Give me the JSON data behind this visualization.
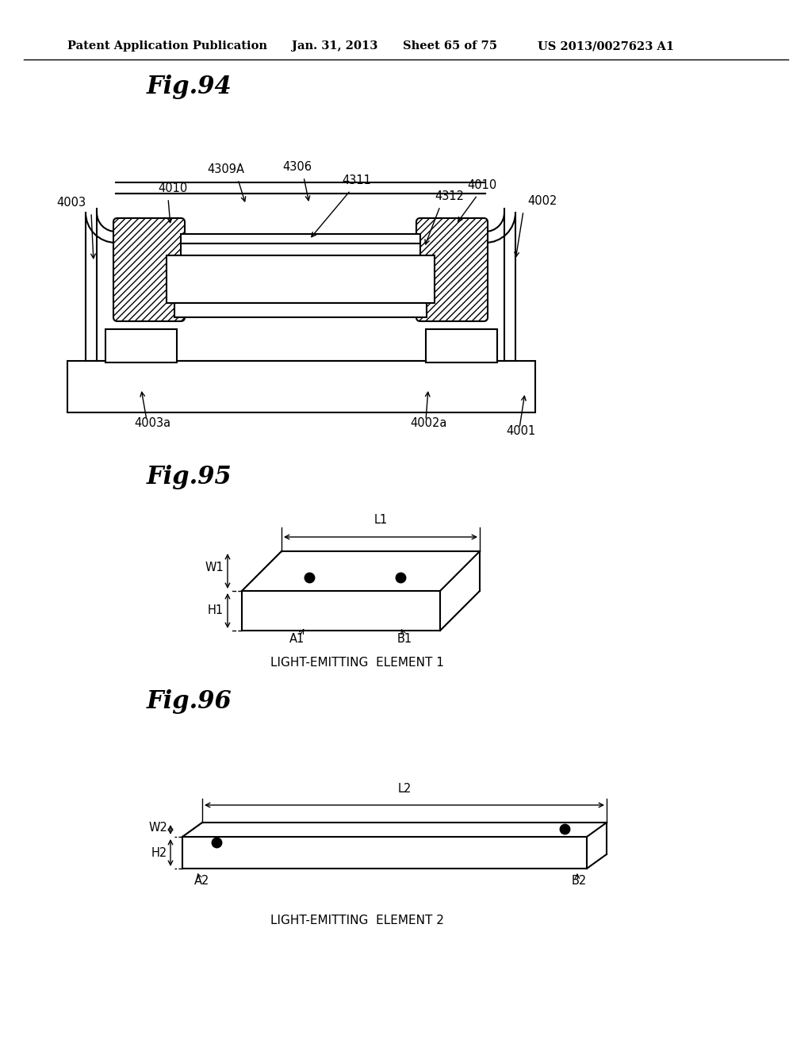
{
  "bg_color": "#ffffff",
  "header_text": "Patent Application Publication",
  "header_date": "Jan. 31, 2013",
  "header_sheet": "Sheet 65 of 75",
  "header_patent": "US 2013/0027623 A1",
  "fig94_title": "Fig.94",
  "fig95_title": "Fig.95",
  "fig96_title": "Fig.96",
  "caption95": "LIGHT-EMITTING  ELEMENT 1",
  "caption96": "LIGHT-EMITTING  ELEMENT 2"
}
